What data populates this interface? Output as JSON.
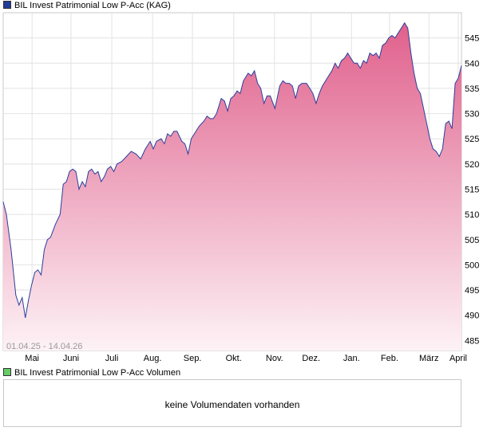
{
  "chart_data": {
    "type": "area",
    "title": "BIL Invest Patrimonial Low P-Acc (KAG)",
    "volume_title": "BIL Invest Patrimonial Low P-Acc Volumen",
    "volume_message": "keine Volumendaten vorhanden",
    "date_range": "01.04.25 - 14.04.26",
    "x_ticks": [
      "Mai",
      "Juni",
      "Juli",
      "Aug.",
      "Sep.",
      "Okt.",
      "Nov.",
      "Dez.",
      "Jan.",
      "Feb.",
      "März",
      "April"
    ],
    "y_ticks": [
      485,
      490,
      495,
      500,
      505,
      510,
      515,
      520,
      525,
      530,
      535,
      540,
      545
    ],
    "ylim": [
      483,
      550
    ],
    "grid": true,
    "colors": {
      "line": "#2a3f9c",
      "fill_top": "#e0608c",
      "fill_bottom": "#fdf2f6",
      "price_swatch": "#1f3d99",
      "volume_swatch": "#66cc66"
    },
    "series": [
      {
        "values": [
          [
            0,
            512.5
          ],
          [
            2,
            510
          ],
          [
            5,
            503
          ],
          [
            8,
            494
          ],
          [
            10,
            492
          ],
          [
            12,
            493.5
          ],
          [
            14,
            489.5
          ],
          [
            16,
            493
          ],
          [
            18,
            496
          ],
          [
            20,
            498.5
          ],
          [
            22,
            499
          ],
          [
            24,
            498
          ],
          [
            26,
            503
          ],
          [
            28,
            505
          ],
          [
            30,
            505.5
          ],
          [
            33,
            508
          ],
          [
            36,
            510
          ],
          [
            38,
            516
          ],
          [
            40,
            516.5
          ],
          [
            42,
            518.5
          ],
          [
            44,
            519
          ],
          [
            46,
            518.5
          ],
          [
            48,
            515
          ],
          [
            50,
            516.5
          ],
          [
            52,
            515.5
          ],
          [
            54,
            518.5
          ],
          [
            56,
            519
          ],
          [
            58,
            518
          ],
          [
            60,
            518.5
          ],
          [
            62,
            516.5
          ],
          [
            64,
            517.5
          ],
          [
            66,
            519
          ],
          [
            68,
            519.5
          ],
          [
            70,
            518.5
          ],
          [
            72,
            520
          ],
          [
            75,
            520.5
          ],
          [
            78,
            521.5
          ],
          [
            81,
            522.5
          ],
          [
            84,
            522
          ],
          [
            87,
            521
          ],
          [
            90,
            523
          ],
          [
            93,
            524.5
          ],
          [
            95,
            523
          ],
          [
            97,
            524.5
          ],
          [
            100,
            525
          ],
          [
            102,
            524
          ],
          [
            104,
            526
          ],
          [
            106,
            525.5
          ],
          [
            108,
            526.5
          ],
          [
            110,
            526.5
          ],
          [
            113,
            524.5
          ],
          [
            115,
            524
          ],
          [
            117,
            522
          ],
          [
            119,
            525
          ],
          [
            121,
            526
          ],
          [
            124,
            527.5
          ],
          [
            127,
            528.5
          ],
          [
            129,
            529.5
          ],
          [
            131,
            529
          ],
          [
            133,
            529
          ],
          [
            135,
            530
          ],
          [
            138,
            533
          ],
          [
            140,
            532.5
          ],
          [
            142,
            530.5
          ],
          [
            144,
            533
          ],
          [
            146,
            533.5
          ],
          [
            148,
            534.5
          ],
          [
            150,
            534
          ],
          [
            152,
            536.5
          ],
          [
            155,
            538
          ],
          [
            157,
            537.5
          ],
          [
            159,
            538.5
          ],
          [
            161,
            536
          ],
          [
            163,
            535
          ],
          [
            165,
            532
          ],
          [
            167,
            533.5
          ],
          [
            169,
            533.5
          ],
          [
            172,
            531
          ],
          [
            175,
            535.5
          ],
          [
            177,
            536.5
          ],
          [
            179,
            536
          ],
          [
            181,
            536
          ],
          [
            183,
            535.5
          ],
          [
            185,
            533
          ],
          [
            187,
            535.5
          ],
          [
            189,
            536
          ],
          [
            192,
            536
          ],
          [
            194,
            535
          ],
          [
            196,
            534
          ],
          [
            198,
            532
          ],
          [
            200,
            534
          ],
          [
            202,
            535.5
          ],
          [
            204,
            536.5
          ],
          [
            206,
            537.5
          ],
          [
            208,
            538.5
          ],
          [
            210,
            540
          ],
          [
            212,
            539
          ],
          [
            214,
            540.5
          ],
          [
            216,
            541
          ],
          [
            218,
            542
          ],
          [
            220,
            541
          ],
          [
            222,
            540
          ],
          [
            224,
            540
          ],
          [
            226,
            539
          ],
          [
            228,
            540.5
          ],
          [
            230,
            540
          ],
          [
            232,
            542
          ],
          [
            234,
            541.5
          ],
          [
            236,
            542
          ],
          [
            238,
            541
          ],
          [
            240,
            543.5
          ],
          [
            242,
            544
          ],
          [
            244,
            545
          ],
          [
            246,
            545.5
          ],
          [
            248,
            545
          ],
          [
            250,
            546
          ],
          [
            252,
            547
          ],
          [
            254,
            548
          ],
          [
            256,
            547
          ],
          [
            258,
            542
          ],
          [
            260,
            538
          ],
          [
            262,
            535
          ],
          [
            264,
            534
          ],
          [
            266,
            531
          ],
          [
            268,
            528
          ],
          [
            270,
            525
          ],
          [
            272,
            523
          ],
          [
            274,
            522.5
          ],
          [
            276,
            521.5
          ],
          [
            278,
            523
          ],
          [
            280,
            528
          ],
          [
            282,
            528.5
          ],
          [
            284,
            527
          ],
          [
            286,
            536
          ],
          [
            288,
            537
          ],
          [
            290,
            539.5
          ]
        ]
      }
    ]
  }
}
